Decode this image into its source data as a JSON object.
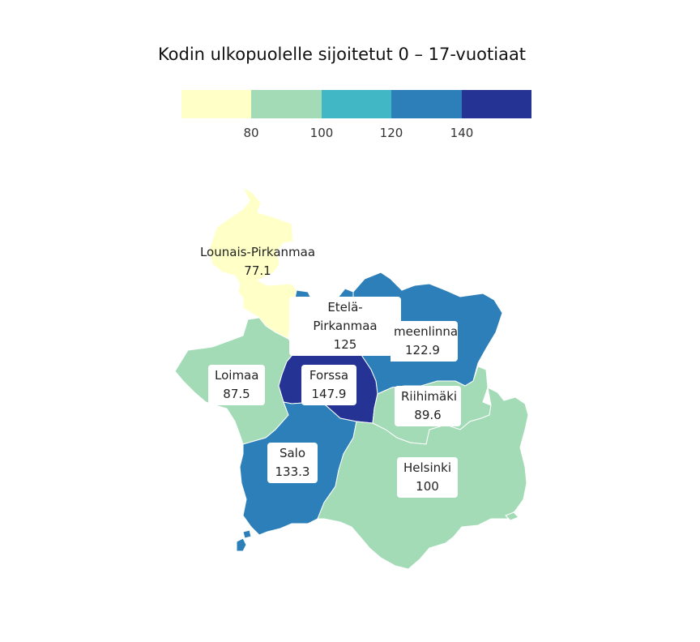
{
  "title": "Kodin ulkopuolelle sijoitetut 0 – 17-vuotiaat",
  "legend": {
    "bins": [
      "#ffffc8",
      "#a3dbb6",
      "#41b6c4",
      "#2c7fb8",
      "#253494"
    ],
    "ticks": [
      "80",
      "100",
      "120",
      "140"
    ]
  },
  "colors": {
    "lowest": "#ffffc8",
    "light_green": "#a3dbb6",
    "mid_blue": "#2c7fb8",
    "dark_blue": "#253494"
  },
  "regions": [
    {
      "name": "Lounais-Pirkanmaa",
      "value": "77.1"
    },
    {
      "name": "Etelä-Pirkanmaa",
      "value": "125"
    },
    {
      "name": "Hämeenlinna",
      "visible_name": "meenlinna",
      "value": "122.9"
    },
    {
      "name": "Loimaa",
      "value": "87.5"
    },
    {
      "name": "Forssa",
      "value": "147.9"
    },
    {
      "name": "Riihimäki",
      "value": "89.6"
    },
    {
      "name": "Salo",
      "value": "133.3"
    },
    {
      "name": "Helsinki",
      "value": "100"
    }
  ]
}
